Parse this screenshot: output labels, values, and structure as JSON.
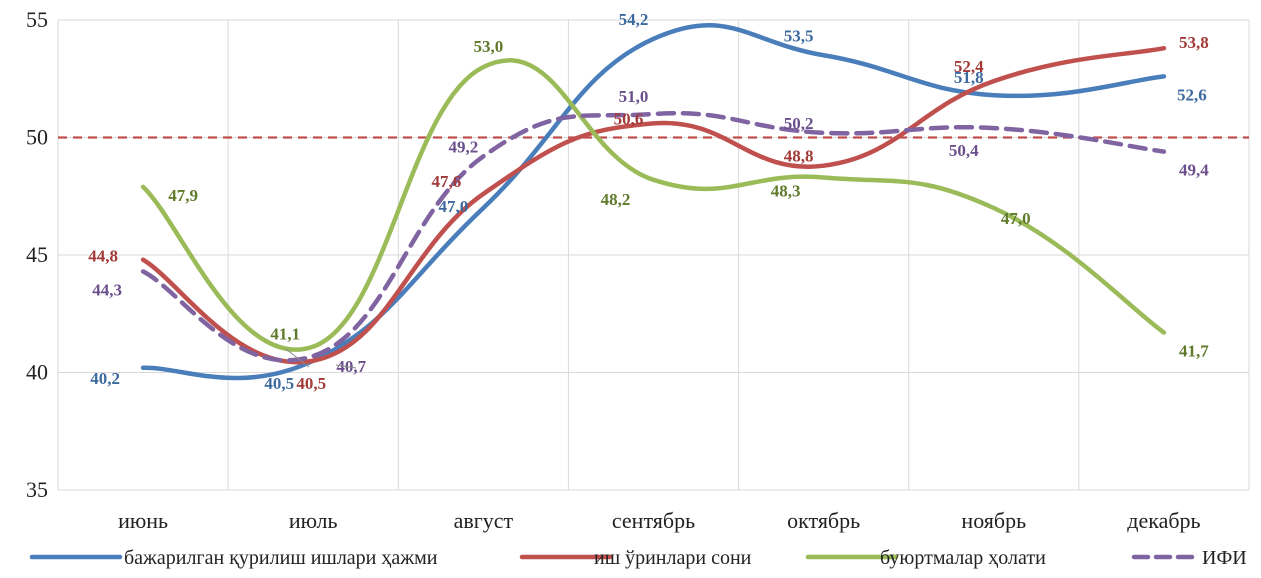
{
  "chart_data": {
    "type": "line",
    "categories": [
      "июнь",
      "июль",
      "август",
      "сентябрь",
      "октябрь",
      "ноябрь",
      "декабрь"
    ],
    "ylim": [
      35,
      55
    ],
    "yticks": [
      35,
      40,
      45,
      50,
      55
    ],
    "reference_line": {
      "value": 50,
      "color": "#c0504d",
      "style": "dashed"
    },
    "grid": true,
    "legend_position": "bottom",
    "series": [
      {
        "name": "бажарилган қурилиш ишлари ҳажми",
        "color": "#4a7ebb",
        "label_color": "#3d6a9e",
        "dashed": false,
        "values": [
          40.2,
          40.5,
          47.0,
          54.2,
          53.5,
          51.8,
          52.6
        ],
        "labels": [
          "40,2",
          "40,5",
          "47,0",
          "54,2",
          "53,5",
          "51,8",
          "52,6"
        ]
      },
      {
        "name": "иш ўринлари сони",
        "color": "#c0504d",
        "label_color": "#a23b38",
        "dashed": false,
        "values": [
          44.8,
          40.5,
          47.6,
          50.6,
          48.8,
          52.4,
          53.8
        ],
        "labels": [
          "44,8",
          "40,5",
          "47,6",
          "50,6",
          "48,8",
          "52,4",
          "53,8"
        ]
      },
      {
        "name": "буюртмалар ҳолати",
        "color": "#9bbb59",
        "label_color": "#5f7a2a",
        "dashed": false,
        "values": [
          47.9,
          41.1,
          53.0,
          48.2,
          48.3,
          47.0,
          41.7
        ],
        "labels": [
          "47,9",
          "41,1",
          "53,0",
          "48,2",
          "48,3",
          "47,0",
          "41,7"
        ]
      },
      {
        "name": "ИФИ",
        "color": "#8064a2",
        "label_color": "#6a4f8c",
        "dashed": true,
        "values": [
          44.3,
          40.7,
          49.2,
          51.0,
          50.2,
          50.4,
          49.4
        ],
        "labels": [
          "44,3",
          "40,7",
          "49,2",
          "51,0",
          "50,2",
          "50,4",
          "49,4"
        ]
      }
    ]
  }
}
